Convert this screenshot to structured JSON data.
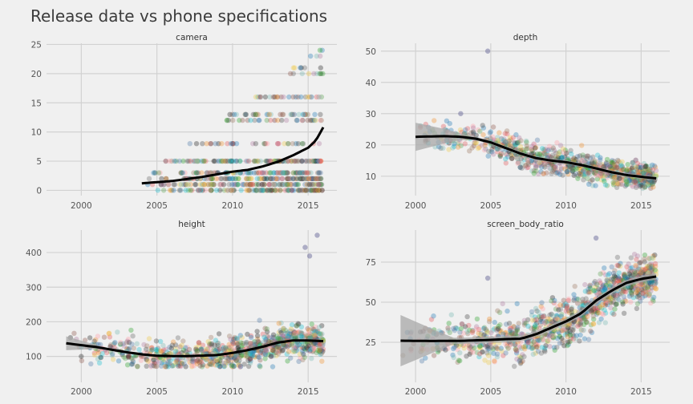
{
  "figure": {
    "title": "Release date vs phone specifications"
  },
  "chart_data": [
    {
      "type": "scatter",
      "title": "camera",
      "xlim": [
        1997.7,
        2016.9
      ],
      "ylim": [
        -0.9,
        25.2
      ],
      "x_ticks": [
        2000,
        2005,
        2010,
        2015
      ],
      "y_ticks": [
        0,
        5,
        10,
        15,
        20,
        25
      ],
      "show_x_ticks": true,
      "grid": true,
      "points": {
        "x_range": [
          2004,
          2016
        ],
        "y_bands": [
          0,
          1,
          2,
          3,
          5,
          8,
          12,
          13,
          16,
          20,
          21,
          23,
          24
        ],
        "count": 720
      },
      "smooth": {
        "x": [
          2004,
          2006,
          2008,
          2010,
          2011,
          2012,
          2013,
          2014,
          2015,
          2015.5,
          2016
        ],
        "y": [
          1.2,
          1.6,
          2.3,
          3.2,
          3.5,
          4.1,
          4.9,
          6.0,
          7.3,
          8.5,
          10.8
        ]
      },
      "confidence_band": false
    },
    {
      "type": "scatter",
      "title": "depth",
      "xlim": [
        1997.7,
        2016.9
      ],
      "ylim": [
        3.8,
        52.5
      ],
      "x_ticks": [
        2000,
        2005,
        2010,
        2015
      ],
      "y_ticks": [
        10,
        20,
        30,
        40,
        50
      ],
      "show_x_ticks": true,
      "grid": true,
      "points": {
        "x_range": [
          2000,
          2016
        ],
        "y_spread": [
          6,
          28
        ],
        "outliers": [
          [
            2004.8,
            50
          ],
          [
            2003,
            30
          ]
        ],
        "count": 900
      },
      "smooth": {
        "x": [
          2000,
          2002,
          2003,
          2004,
          2005,
          2006,
          2007,
          2008,
          2009,
          2010,
          2011,
          2012,
          2013,
          2014,
          2015,
          2016
        ],
        "y": [
          22.6,
          22.8,
          22.6,
          22.0,
          20.8,
          19.0,
          17.2,
          15.8,
          15.0,
          14.5,
          13.6,
          12.5,
          11.3,
          10.4,
          9.8,
          9.3
        ]
      },
      "confidence_band": {
        "x_range": [
          2000,
          2003.5
        ],
        "half_width_start": 4.5
      }
    },
    {
      "type": "scatter",
      "title": "height",
      "xlim": [
        1997.7,
        2016.9
      ],
      "ylim": [
        25,
        465
      ],
      "x_ticks": [
        2000,
        2005,
        2010,
        2015
      ],
      "y_ticks": [
        100,
        200,
        300,
        400
      ],
      "show_x_ticks": true,
      "grid": true,
      "points": {
        "x_range": [
          1999,
          2016
        ],
        "y_spread": [
          70,
          300
        ],
        "outliers": [
          [
            2015.6,
            450
          ],
          [
            2014.8,
            415
          ],
          [
            2015.1,
            390
          ]
        ],
        "count": 900
      },
      "smooth": {
        "x": [
          1999,
          2001,
          2003,
          2004,
          2005,
          2006,
          2007,
          2008,
          2009,
          2010,
          2011,
          2012,
          2013,
          2014,
          2015,
          2016
        ],
        "y": [
          138,
          127,
          112,
          106,
          102,
          101,
          101,
          102,
          104,
          110,
          118,
          128,
          140,
          146,
          146,
          144
        ]
      },
      "confidence_band": {
        "x_range": [
          1999,
          2001.5
        ],
        "half_width_start": 20
      }
    },
    {
      "type": "scatter",
      "title": "screen_body_ratio",
      "xlim": [
        1997.7,
        2016.9
      ],
      "ylim": [
        0,
        95
      ],
      "x_ticks": [
        2000,
        2005,
        2010,
        2015
      ],
      "y_ticks": [
        25,
        50,
        75
      ],
      "show_x_ticks": true,
      "grid": true,
      "points": {
        "x_range": [
          1999,
          2016
        ],
        "y_spread": [
          10,
          80
        ],
        "outliers": [
          [
            2012,
            90
          ],
          [
            2004.8,
            65
          ]
        ],
        "count": 1100
      },
      "smooth": {
        "x": [
          1999,
          2001,
          2003,
          2005,
          2006,
          2007,
          2008,
          2009,
          2010,
          2011,
          2012,
          2013,
          2014,
          2015,
          2016
        ],
        "y": [
          26,
          25.8,
          25.9,
          26.5,
          27.0,
          27.2,
          30,
          34,
          38,
          43,
          51,
          57,
          62,
          64.5,
          66
        ]
      },
      "confidence_band": {
        "x_range": [
          1999,
          2002.5
        ],
        "half_width_start": 16
      }
    }
  ],
  "colors": {
    "background": "#f0f0f0",
    "grid": "#d2d2d2",
    "smooth_line": "#000000",
    "confidence_band": "#a8a8a8",
    "palette": [
      "#1f77b4",
      "#e15759",
      "#59a14f",
      "#4e79a7",
      "#f28e2b",
      "#76b7b2",
      "#b07aa1",
      "#9c755f",
      "#edc948",
      "#17becf",
      "#ff9da7",
      "#2ca02c",
      "#8c564b",
      "#222222",
      "#444444",
      "#666666"
    ]
  }
}
